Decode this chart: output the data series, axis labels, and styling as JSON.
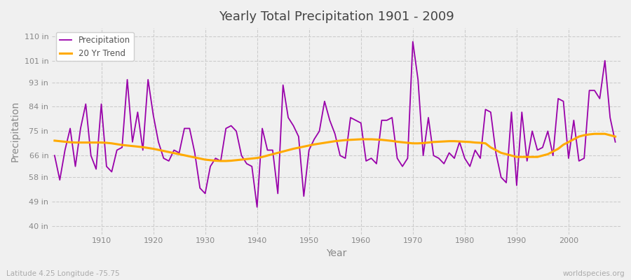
{
  "title": "Yearly Total Precipitation 1901 - 2009",
  "xlabel": "Year",
  "ylabel": "Precipitation",
  "subtitle_left": "Latitude 4.25 Longitude -75.75",
  "subtitle_right": "worldspecies.org",
  "yticks": [
    40,
    49,
    58,
    66,
    75,
    84,
    93,
    101,
    110
  ],
  "ytick_labels": [
    "40 in",
    "49 in",
    "58 in",
    "66 in",
    "75 in",
    "84 in",
    "93 in",
    "101 in",
    "110 in"
  ],
  "ylim": [
    37,
    113
  ],
  "xlim": [
    1900.5,
    2010
  ],
  "background_color": "#f0f0f0",
  "plot_bg_color": "#f0f0f0",
  "precip_color": "#9900aa",
  "trend_color": "#ffaa00",
  "precip_linewidth": 1.3,
  "trend_linewidth": 2.2,
  "years": [
    1901,
    1902,
    1903,
    1904,
    1905,
    1906,
    1907,
    1908,
    1909,
    1910,
    1911,
    1912,
    1913,
    1914,
    1915,
    1916,
    1917,
    1918,
    1919,
    1920,
    1921,
    1922,
    1923,
    1924,
    1925,
    1926,
    1927,
    1928,
    1929,
    1930,
    1931,
    1932,
    1933,
    1934,
    1935,
    1936,
    1937,
    1938,
    1939,
    1940,
    1941,
    1942,
    1943,
    1944,
    1945,
    1946,
    1947,
    1948,
    1949,
    1950,
    1951,
    1952,
    1953,
    1954,
    1955,
    1956,
    1957,
    1958,
    1959,
    1960,
    1961,
    1962,
    1963,
    1964,
    1965,
    1966,
    1967,
    1968,
    1969,
    1970,
    1971,
    1972,
    1973,
    1974,
    1975,
    1976,
    1977,
    1978,
    1979,
    1980,
    1981,
    1982,
    1983,
    1984,
    1985,
    1986,
    1987,
    1988,
    1989,
    1990,
    1991,
    1992,
    1993,
    1994,
    1995,
    1996,
    1997,
    1998,
    1999,
    2000,
    2001,
    2002,
    2003,
    2004,
    2005,
    2006,
    2007,
    2008,
    2009
  ],
  "precip": [
    66,
    57,
    68,
    76,
    62,
    76,
    85,
    66,
    61,
    85,
    62,
    60,
    68,
    69,
    94,
    71,
    82,
    68,
    94,
    81,
    71,
    65,
    64,
    68,
    67,
    76,
    76,
    67,
    54,
    52,
    62,
    65,
    64,
    76,
    77,
    75,
    66,
    63,
    62,
    47,
    76,
    68,
    68,
    52,
    92,
    80,
    77,
    73,
    51,
    68,
    72,
    75,
    86,
    79,
    74,
    66,
    65,
    80,
    79,
    78,
    64,
    65,
    63,
    79,
    79,
    80,
    65,
    62,
    65,
    108,
    94,
    66,
    80,
    66,
    65,
    63,
    67,
    65,
    71,
    65,
    62,
    68,
    65,
    83,
    82,
    67,
    58,
    56,
    82,
    55,
    82,
    64,
    75,
    68,
    69,
    75,
    66,
    87,
    86,
    65,
    79,
    64,
    65,
    90,
    90,
    87,
    101,
    80,
    71
  ],
  "trend": [
    71.5,
    71.3,
    71.1,
    70.9,
    70.8,
    70.8,
    70.8,
    70.8,
    70.8,
    70.8,
    70.7,
    70.5,
    70.2,
    69.9,
    69.7,
    69.5,
    69.3,
    69.1,
    68.8,
    68.5,
    68.1,
    67.7,
    67.3,
    66.9,
    66.5,
    66.1,
    65.7,
    65.3,
    64.9,
    64.5,
    64.3,
    64.1,
    64.0,
    64.0,
    64.1,
    64.3,
    64.5,
    64.7,
    64.9,
    65.1,
    65.5,
    66.0,
    66.5,
    67.0,
    67.5,
    68.0,
    68.5,
    68.9,
    69.3,
    69.7,
    70.1,
    70.4,
    70.7,
    71.0,
    71.3,
    71.5,
    71.7,
    71.8,
    71.9,
    72.0,
    72.0,
    72.0,
    71.9,
    71.8,
    71.6,
    71.4,
    71.1,
    70.9,
    70.7,
    70.5,
    70.5,
    70.6,
    70.8,
    71.0,
    71.1,
    71.2,
    71.3,
    71.3,
    71.2,
    71.1,
    71.0,
    70.8,
    70.7,
    70.5,
    69.0,
    68.0,
    67.0,
    66.5,
    66.0,
    65.5,
    65.5,
    65.5,
    65.5,
    65.5,
    66.0,
    66.5,
    67.5,
    68.5,
    70.0,
    71.0,
    72.0,
    73.0,
    73.5,
    73.8,
    74.0,
    74.0,
    74.0,
    73.5,
    73.0
  ]
}
